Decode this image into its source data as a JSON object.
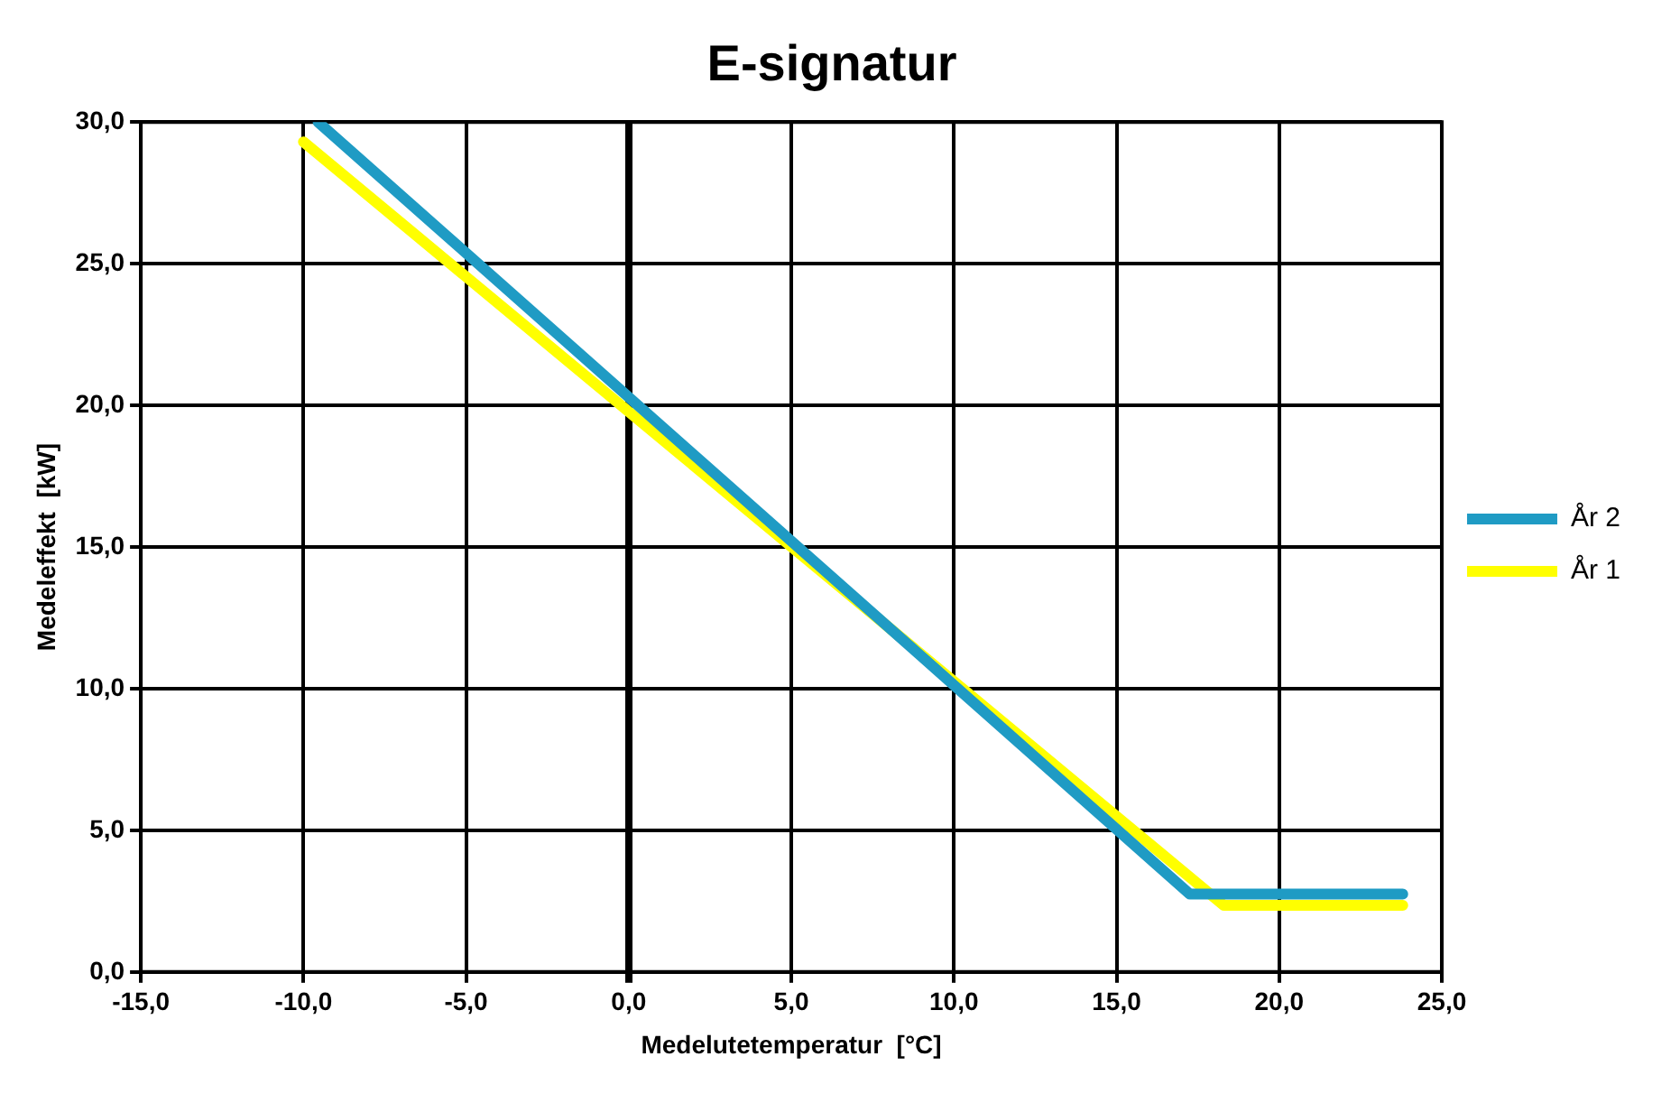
{
  "chart_data": {
    "type": "line",
    "title": "E-signatur",
    "xlabel": "Medelutetemperatur  [°C]",
    "ylabel": "Medeleffekt  [kW]",
    "series": [
      {
        "name": "År 2",
        "color": "#1f9bc4",
        "x": [
          -9.55,
          17.25,
          23.8
        ],
        "values": [
          30,
          2.75,
          2.75
        ]
      },
      {
        "name": "År 1",
        "color": "#ffff00",
        "x": [
          -10,
          18.3,
          23.8
        ],
        "values": [
          29.3,
          2.35,
          2.35
        ]
      }
    ],
    "xlim": [
      -15,
      25
    ],
    "xticks": [
      {
        "value": -15,
        "label": "-15,0"
      },
      {
        "value": -10,
        "label": "-10,0"
      },
      {
        "value": -5,
        "label": "-5,0"
      },
      {
        "value": 0,
        "label": "0,0"
      },
      {
        "value": 5,
        "label": "5,0"
      },
      {
        "value": 10,
        "label": "10,0"
      },
      {
        "value": 15,
        "label": "15,0"
      },
      {
        "value": 20,
        "label": "20,0"
      },
      {
        "value": 25,
        "label": "25,0"
      }
    ],
    "ylim": [
      0,
      30
    ],
    "yticks": [
      {
        "value": 0,
        "label": "0,0"
      },
      {
        "value": 5,
        "label": "5,0"
      },
      {
        "value": 10,
        "label": "10,0"
      },
      {
        "value": 15,
        "label": "15,0"
      },
      {
        "value": 20,
        "label": "20,0"
      },
      {
        "value": 25,
        "label": "25,0"
      },
      {
        "value": 30,
        "label": "30,0"
      }
    ],
    "grid": true,
    "legend": "right",
    "marker": "none",
    "line_style": "solid"
  }
}
